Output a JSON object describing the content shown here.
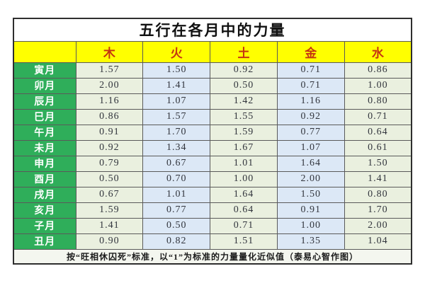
{
  "chart_data": {
    "type": "table",
    "title": "五行在各月中的力量",
    "corner_label": "",
    "columns": [
      {
        "key": "wood",
        "label": "木"
      },
      {
        "key": "fire",
        "label": "火"
      },
      {
        "key": "earth",
        "label": "土"
      },
      {
        "key": "metal",
        "label": "金"
      },
      {
        "key": "water",
        "label": "水"
      }
    ],
    "rows": [
      {
        "month": "寅月",
        "values": [
          "1.57",
          "1.50",
          "0.92",
          "0.71",
          "0.86"
        ]
      },
      {
        "month": "卯月",
        "values": [
          "2.00",
          "1.41",
          "0.50",
          "0.71",
          "1.00"
        ]
      },
      {
        "month": "辰月",
        "values": [
          "1.16",
          "1.07",
          "1.42",
          "1.16",
          "0.80"
        ]
      },
      {
        "month": "巳月",
        "values": [
          "0.86",
          "1.57",
          "1.55",
          "0.92",
          "0.71"
        ]
      },
      {
        "month": "午月",
        "values": [
          "0.91",
          "1.70",
          "1.59",
          "0.77",
          "0.64"
        ]
      },
      {
        "month": "未月",
        "values": [
          "0.92",
          "1.34",
          "1.67",
          "1.07",
          "0.61"
        ]
      },
      {
        "month": "申月",
        "values": [
          "0.79",
          "0.67",
          "1.01",
          "1.64",
          "1.50"
        ]
      },
      {
        "month": "酉月",
        "values": [
          "0.50",
          "0.70",
          "1.00",
          "2.00",
          "1.41"
        ]
      },
      {
        "month": "戌月",
        "values": [
          "0.67",
          "1.01",
          "1.64",
          "1.50",
          "0.80"
        ]
      },
      {
        "month": "亥月",
        "values": [
          "1.59",
          "0.77",
          "0.64",
          "0.91",
          "1.70"
        ]
      },
      {
        "month": "子月",
        "values": [
          "1.41",
          "0.50",
          "0.71",
          "1.00",
          "2.00"
        ]
      },
      {
        "month": "丑月",
        "values": [
          "0.90",
          "0.82",
          "1.51",
          "1.35",
          "1.04"
        ]
      }
    ],
    "footnote": "按“旺相休囚死”标准，以“1”为标准的力量量化近似值（泰易心智作图）"
  },
  "colors": {
    "header-bg": "#ffff00",
    "header-text": "#c53511",
    "month-bg": "#2fae5a",
    "month-text": "#ffffff",
    "cell-cream": "#eaf0df",
    "cell-blue": "#dce8f6",
    "value-text": "#31343c",
    "border": "#5a5a5a",
    "outer-border": "#2e2e2e",
    "footer-bg": "#f4f6ef",
    "title-text": "#111111",
    "page-bg": "#ffffff"
  }
}
